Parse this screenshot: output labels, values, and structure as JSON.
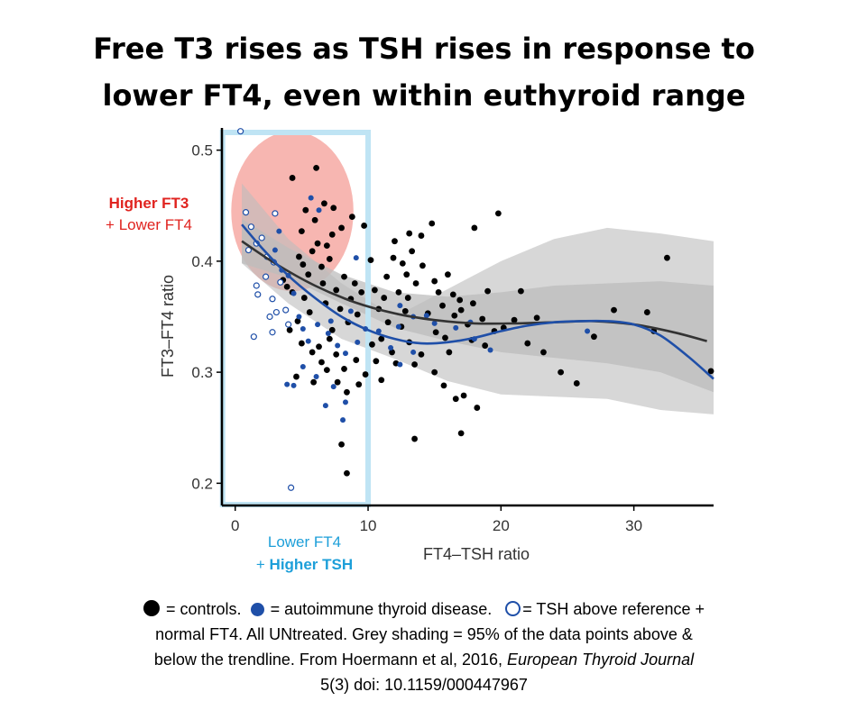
{
  "title": {
    "line1": "Free T3 rises as TSH rises in response to",
    "line2": "lower FT4, even within euthyroid range"
  },
  "annotations": {
    "red_line1": "Higher FT3",
    "red_line2": "+ Lower FT4",
    "blue_line1": "Lower FT4",
    "blue_line2_prefix": "+ ",
    "blue_line2_bold": "Higher TSH"
  },
  "colors": {
    "control": "#000000",
    "autoimmune": "#1f4fa8",
    "trend_control": "#333333",
    "trend_blue": "#1f4fa8",
    "band": "#bdbdbd",
    "highlight_box": "#bfe4f4",
    "highlight_ellipse": "#f6a9a3",
    "red_text": "#e0231f",
    "blue_text": "#1d9fd9"
  },
  "caption": {
    "controls": "= controls.",
    "autoimmune": "= autoimmune thyroid disease.",
    "tsh_above": "= TSH above reference +",
    "line2": "normal FT4. All UNtreated. Grey shading = 95% of the data points above &",
    "line3_prefix": "below the trendline. From Hoermann et al, 2016, ",
    "line3_journal": "European Thyroid Journal",
    "line4": "5(3) doi: 10.1159/000447967"
  },
  "chart_data": {
    "type": "scatter",
    "xlabel": "FT4–TSH ratio",
    "ylabel": "FT3–FT4 ratio",
    "xlim": [
      -1,
      36
    ],
    "ylim": [
      0.18,
      0.52
    ],
    "x_ticks": [
      0,
      10,
      20,
      30
    ],
    "y_ticks": [
      0.2,
      0.3,
      0.4,
      0.5
    ],
    "x_tick_labels": [
      "0",
      "10",
      "20",
      "30"
    ],
    "y_tick_labels": [
      "0.2",
      "0.3",
      "0.4",
      "0.5"
    ],
    "highlight_x_range": [
      0,
      10
    ],
    "series": [
      {
        "name": "controls",
        "marker": "filled-black",
        "points": [
          [
            6.1,
            0.484
          ],
          [
            6.7,
            0.452
          ],
          [
            8.8,
            0.44
          ],
          [
            8.0,
            0.43
          ],
          [
            7.3,
            0.424
          ],
          [
            6.2,
            0.416
          ],
          [
            5.8,
            0.409
          ],
          [
            7.1,
            0.402
          ],
          [
            6.5,
            0.395
          ],
          [
            5.5,
            0.388
          ],
          [
            4.3,
            0.475
          ],
          [
            5.3,
            0.446
          ],
          [
            6.0,
            0.437
          ],
          [
            7.4,
            0.448
          ],
          [
            5.0,
            0.427
          ],
          [
            6.9,
            0.414
          ],
          [
            4.8,
            0.404
          ],
          [
            5.1,
            0.397
          ],
          [
            3.6,
            0.383
          ],
          [
            3.9,
            0.377
          ],
          [
            4.3,
            0.372
          ],
          [
            5.2,
            0.367
          ],
          [
            6.6,
            0.38
          ],
          [
            7.6,
            0.374
          ],
          [
            8.2,
            0.386
          ],
          [
            9.0,
            0.38
          ],
          [
            9.5,
            0.372
          ],
          [
            8.7,
            0.366
          ],
          [
            7.9,
            0.357
          ],
          [
            6.8,
            0.362
          ],
          [
            5.6,
            0.354
          ],
          [
            4.7,
            0.346
          ],
          [
            4.1,
            0.338
          ],
          [
            5.0,
            0.326
          ],
          [
            5.8,
            0.318
          ],
          [
            6.5,
            0.309
          ],
          [
            7.6,
            0.316
          ],
          [
            8.2,
            0.303
          ],
          [
            9.1,
            0.311
          ],
          [
            9.8,
            0.298
          ],
          [
            9.3,
            0.289
          ],
          [
            8.4,
            0.282
          ],
          [
            7.7,
            0.291
          ],
          [
            10.2,
            0.401
          ],
          [
            10.5,
            0.374
          ],
          [
            10.8,
            0.357
          ],
          [
            11.4,
            0.386
          ],
          [
            11.2,
            0.367
          ],
          [
            11.9,
            0.403
          ],
          [
            12.0,
            0.418
          ],
          [
            12.6,
            0.398
          ],
          [
            12.3,
            0.372
          ],
          [
            13.0,
            0.367
          ],
          [
            13.6,
            0.38
          ],
          [
            13.3,
            0.409
          ],
          [
            14.1,
            0.396
          ],
          [
            14.5,
            0.353
          ],
          [
            15.0,
            0.382
          ],
          [
            15.6,
            0.36
          ],
          [
            15.1,
            0.336
          ],
          [
            16.0,
            0.388
          ],
          [
            16.5,
            0.351
          ],
          [
            16.1,
            0.318
          ],
          [
            17.0,
            0.356
          ],
          [
            17.5,
            0.343
          ],
          [
            18.0,
            0.43
          ],
          [
            18.6,
            0.348
          ],
          [
            19.0,
            0.373
          ],
          [
            19.5,
            0.337
          ],
          [
            12.5,
            0.341
          ],
          [
            13.1,
            0.327
          ],
          [
            13.5,
            0.307
          ],
          [
            14.0,
            0.316
          ],
          [
            15.0,
            0.3
          ],
          [
            15.7,
            0.288
          ],
          [
            16.6,
            0.276
          ],
          [
            17.2,
            0.279
          ],
          [
            18.2,
            0.268
          ],
          [
            13.5,
            0.24
          ],
          [
            17.0,
            0.245
          ],
          [
            21.0,
            0.347
          ],
          [
            22.0,
            0.326
          ],
          [
            23.2,
            0.318
          ],
          [
            24.5,
            0.3
          ],
          [
            25.7,
            0.29
          ],
          [
            27.0,
            0.332
          ],
          [
            28.5,
            0.356
          ],
          [
            31.0,
            0.354
          ],
          [
            31.5,
            0.337
          ],
          [
            35.8,
            0.301
          ],
          [
            32.5,
            0.403
          ],
          [
            11.0,
            0.33
          ],
          [
            11.8,
            0.318
          ],
          [
            12.1,
            0.308
          ],
          [
            10.6,
            0.31
          ],
          [
            11.0,
            0.293
          ],
          [
            8.0,
            0.235
          ],
          [
            8.4,
            0.209
          ],
          [
            9.7,
            0.432
          ],
          [
            6.3,
            0.323
          ],
          [
            7.1,
            0.33
          ],
          [
            4.6,
            0.296
          ],
          [
            5.9,
            0.291
          ],
          [
            6.9,
            0.302
          ],
          [
            13.1,
            0.425
          ],
          [
            14.8,
            0.434
          ],
          [
            19.8,
            0.443
          ],
          [
            15.8,
            0.331
          ],
          [
            17.8,
            0.329
          ],
          [
            16.9,
            0.365
          ],
          [
            21.5,
            0.373
          ],
          [
            22.7,
            0.349
          ],
          [
            14.0,
            0.423
          ],
          [
            12.9,
            0.388
          ],
          [
            15.3,
            0.372
          ],
          [
            16.4,
            0.37
          ],
          [
            18.8,
            0.324
          ],
          [
            20.2,
            0.34
          ],
          [
            8.5,
            0.345
          ],
          [
            9.2,
            0.352
          ],
          [
            7.3,
            0.338
          ],
          [
            10.3,
            0.325
          ],
          [
            11.5,
            0.345
          ],
          [
            12.8,
            0.355
          ],
          [
            17.9,
            0.362
          ]
        ]
      },
      {
        "name": "autoimmune thyroid disease",
        "marker": "filled-blue",
        "points": [
          [
            3.0,
            0.41
          ],
          [
            3.5,
            0.392
          ],
          [
            4.0,
            0.387
          ],
          [
            4.4,
            0.371
          ],
          [
            4.8,
            0.35
          ],
          [
            5.1,
            0.339
          ],
          [
            5.5,
            0.328
          ],
          [
            6.2,
            0.343
          ],
          [
            7.0,
            0.335
          ],
          [
            7.7,
            0.324
          ],
          [
            8.3,
            0.317
          ],
          [
            9.2,
            0.327
          ],
          [
            9.8,
            0.339
          ],
          [
            6.1,
            0.296
          ],
          [
            7.4,
            0.287
          ],
          [
            8.3,
            0.273
          ],
          [
            8.1,
            0.257
          ],
          [
            6.8,
            0.27
          ],
          [
            4.4,
            0.288
          ],
          [
            3.9,
            0.289
          ],
          [
            5.1,
            0.305
          ],
          [
            7.2,
            0.346
          ],
          [
            10.8,
            0.337
          ],
          [
            11.7,
            0.322
          ],
          [
            12.3,
            0.341
          ],
          [
            13.4,
            0.35
          ],
          [
            14.4,
            0.351
          ],
          [
            15.0,
            0.344
          ],
          [
            16.6,
            0.34
          ],
          [
            18.0,
            0.33
          ],
          [
            19.2,
            0.32
          ],
          [
            26.5,
            0.337
          ],
          [
            12.4,
            0.307
          ],
          [
            9.1,
            0.403
          ],
          [
            6.3,
            0.446
          ],
          [
            5.7,
            0.457
          ],
          [
            3.3,
            0.427
          ],
          [
            8.7,
            0.355
          ],
          [
            12.4,
            0.36
          ],
          [
            13.4,
            0.318
          ],
          [
            17.7,
            0.345
          ]
        ]
      },
      {
        "name": "TSH above reference + normal FT4",
        "marker": "open-blue",
        "points": [
          [
            0.4,
            0.517
          ],
          [
            1.2,
            0.431
          ],
          [
            1.6,
            0.416
          ],
          [
            2.4,
            0.404
          ],
          [
            2.9,
            0.399
          ],
          [
            2.3,
            0.386
          ],
          [
            3.4,
            0.381
          ],
          [
            2.8,
            0.366
          ],
          [
            1.7,
            0.37
          ],
          [
            1.6,
            0.378
          ],
          [
            3.8,
            0.356
          ],
          [
            4.0,
            0.343
          ],
          [
            2.6,
            0.35
          ],
          [
            2.8,
            0.336
          ],
          [
            1.4,
            0.332
          ],
          [
            1.0,
            0.41
          ],
          [
            2.0,
            0.421
          ],
          [
            3.0,
            0.443
          ],
          [
            0.8,
            0.444
          ],
          [
            3.1,
            0.354
          ],
          [
            4.2,
            0.196
          ]
        ]
      }
    ],
    "trendlines": [
      {
        "name": "controls trend",
        "x": [
          0.5,
          3,
          6,
          9,
          12,
          15,
          18,
          21,
          24,
          27,
          30,
          33,
          35.5
        ],
        "y": [
          0.418,
          0.398,
          0.378,
          0.363,
          0.353,
          0.347,
          0.344,
          0.344,
          0.345,
          0.346,
          0.343,
          0.336,
          0.328
        ]
      },
      {
        "name": "autoimmune trend",
        "x": [
          0.5,
          2,
          4,
          6,
          8,
          10,
          12,
          14,
          16,
          18,
          20,
          22,
          24,
          26,
          28,
          30,
          32,
          34,
          36
        ],
        "y": [
          0.433,
          0.412,
          0.387,
          0.367,
          0.35,
          0.338,
          0.33,
          0.326,
          0.327,
          0.331,
          0.337,
          0.342,
          0.345,
          0.346,
          0.346,
          0.343,
          0.333,
          0.315,
          0.294
        ]
      }
    ],
    "bands": [
      {
        "name": "controls 95% band",
        "x": [
          0.5,
          4,
          8,
          12,
          16,
          20,
          24,
          28,
          32,
          36
        ],
        "upper": [
          0.438,
          0.412,
          0.388,
          0.372,
          0.368,
          0.372,
          0.378,
          0.38,
          0.382,
          0.378
        ],
        "lower": [
          0.398,
          0.385,
          0.362,
          0.34,
          0.328,
          0.318,
          0.313,
          0.308,
          0.3,
          0.282
        ]
      },
      {
        "name": "autoimmune 95% band",
        "x": [
          0.5,
          4,
          8,
          12,
          16,
          20,
          24,
          28,
          32,
          36
        ],
        "upper": [
          0.47,
          0.42,
          0.38,
          0.35,
          0.375,
          0.4,
          0.42,
          0.43,
          0.425,
          0.418
        ],
        "lower": [
          0.398,
          0.362,
          0.33,
          0.312,
          0.292,
          0.28,
          0.278,
          0.276,
          0.266,
          0.262
        ]
      }
    ]
  }
}
